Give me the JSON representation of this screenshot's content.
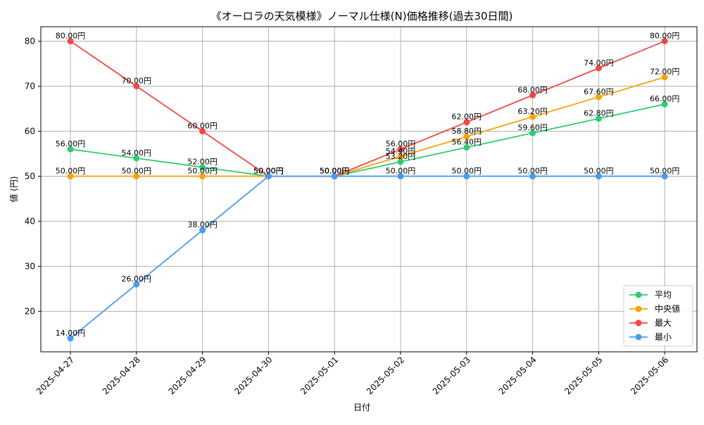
{
  "chart_data": {
    "type": "line",
    "title": "《オーロラの天気模様》ノーマル仕様(N)価格推移(過去30日間)",
    "xlabel": "日付",
    "ylabel": "値 (円)",
    "categories": [
      "2025-04-27",
      "2025-04-28",
      "2025-04-29",
      "2025-04-30",
      "2025-05-01",
      "2025-05-02",
      "2025-05-03",
      "2025-05-04",
      "2025-05-05",
      "2025-05-06"
    ],
    "ylim": [
      11,
      83.2
    ],
    "yticks": [
      20,
      30,
      40,
      50,
      60,
      70,
      80
    ],
    "grid": true,
    "legend_position": "lower-right",
    "value_suffix": "円",
    "series": [
      {
        "name": "平均",
        "color": "#2ecc71",
        "values": [
          56.0,
          54.0,
          52.0,
          50.0,
          50.0,
          53.2,
          56.4,
          59.6,
          62.8,
          66.0
        ]
      },
      {
        "name": "中央値",
        "color": "#f5a30a",
        "values": [
          50.0,
          50.0,
          50.0,
          50.0,
          50.0,
          54.4,
          58.8,
          63.2,
          67.6,
          72.0
        ]
      },
      {
        "name": "最大",
        "color": "#f04848",
        "values": [
          80.0,
          70.0,
          60.0,
          50.0,
          50.0,
          56.0,
          62.0,
          68.0,
          74.0,
          80.0
        ]
      },
      {
        "name": "最小",
        "color": "#4a9bf0",
        "values": [
          14.0,
          26.0,
          38.0,
          50.0,
          50.0,
          50.0,
          50.0,
          50.0,
          50.0,
          50.0
        ]
      }
    ]
  }
}
